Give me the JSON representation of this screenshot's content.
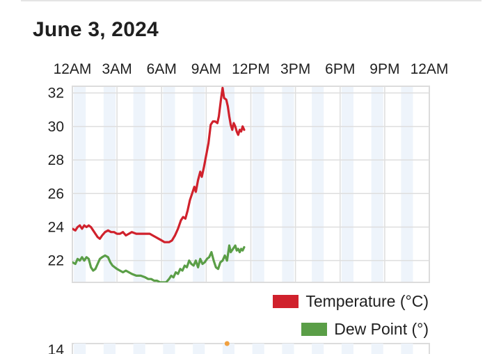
{
  "header": {
    "date": "June 3, 2024"
  },
  "chart_data": [
    {
      "type": "line",
      "title": "",
      "xlabel": "",
      "ylabel": "",
      "x_ticks": [
        "12AM",
        "3AM",
        "6AM",
        "9AM",
        "12PM",
        "3PM",
        "6PM",
        "9PM",
        "12AM"
      ],
      "x_range_hours": [
        0,
        24
      ],
      "y_ticks": [
        22,
        24,
        26,
        28,
        30,
        32
      ],
      "ylim": [
        20.7,
        32.4
      ],
      "grid": true,
      "legend_position": "bottom-right",
      "series": [
        {
          "name": "Temperature (°C)",
          "color": "#d0212c",
          "points": [
            [
              0,
              23.9
            ],
            [
              0.2,
              23.8
            ],
            [
              0.35,
              24.0
            ],
            [
              0.5,
              24.1
            ],
            [
              0.65,
              23.9
            ],
            [
              0.8,
              24.1
            ],
            [
              0.95,
              24.0
            ],
            [
              1.1,
              24.1
            ],
            [
              1.25,
              24.0
            ],
            [
              1.4,
              23.8
            ],
            [
              1.55,
              23.6
            ],
            [
              1.7,
              23.4
            ],
            [
              1.85,
              23.3
            ],
            [
              2.0,
              23.5
            ],
            [
              2.2,
              23.7
            ],
            [
              2.4,
              23.8
            ],
            [
              2.6,
              23.7
            ],
            [
              2.8,
              23.7
            ],
            [
              3.0,
              23.6
            ],
            [
              3.2,
              23.6
            ],
            [
              3.4,
              23.7
            ],
            [
              3.6,
              23.5
            ],
            [
              3.8,
              23.6
            ],
            [
              4.0,
              23.7
            ],
            [
              4.3,
              23.6
            ],
            [
              4.6,
              23.6
            ],
            [
              4.9,
              23.6
            ],
            [
              5.2,
              23.6
            ],
            [
              5.4,
              23.5
            ],
            [
              5.6,
              23.4
            ],
            [
              5.8,
              23.3
            ],
            [
              6.0,
              23.2
            ],
            [
              6.2,
              23.1
            ],
            [
              6.5,
              23.1
            ],
            [
              6.7,
              23.2
            ],
            [
              6.9,
              23.5
            ],
            [
              7.1,
              23.9
            ],
            [
              7.3,
              24.4
            ],
            [
              7.45,
              24.6
            ],
            [
              7.6,
              24.5
            ],
            [
              7.75,
              25.0
            ],
            [
              7.9,
              25.6
            ],
            [
              8.05,
              26.0
            ],
            [
              8.2,
              26.4
            ],
            [
              8.3,
              26.1
            ],
            [
              8.45,
              26.8
            ],
            [
              8.6,
              27.3
            ],
            [
              8.7,
              27.0
            ],
            [
              8.85,
              27.6
            ],
            [
              9.0,
              28.3
            ],
            [
              9.15,
              29.0
            ],
            [
              9.3,
              30.1
            ],
            [
              9.45,
              30.3
            ],
            [
              9.6,
              30.3
            ],
            [
              9.75,
              30.2
            ],
            [
              9.85,
              30.6
            ],
            [
              10.0,
              31.7
            ],
            [
              10.1,
              32.3
            ],
            [
              10.2,
              31.7
            ],
            [
              10.35,
              31.6
            ],
            [
              10.45,
              31.2
            ],
            [
              10.55,
              30.6
            ],
            [
              10.65,
              30.1
            ],
            [
              10.75,
              29.8
            ],
            [
              10.85,
              30.2
            ],
            [
              10.95,
              30.0
            ],
            [
              11.05,
              29.7
            ],
            [
              11.15,
              29.5
            ],
            [
              11.25,
              29.8
            ],
            [
              11.35,
              29.7
            ],
            [
              11.45,
              30.0
            ],
            [
              11.55,
              29.8
            ]
          ]
        },
        {
          "name": "Dew Point (°)",
          "color": "#5a9e47",
          "points": [
            [
              0,
              21.9
            ],
            [
              0.2,
              21.8
            ],
            [
              0.35,
              22.1
            ],
            [
              0.5,
              22.0
            ],
            [
              0.65,
              22.2
            ],
            [
              0.8,
              22.0
            ],
            [
              0.95,
              22.2
            ],
            [
              1.1,
              22.1
            ],
            [
              1.25,
              21.6
            ],
            [
              1.4,
              21.4
            ],
            [
              1.55,
              21.5
            ],
            [
              1.7,
              21.8
            ],
            [
              1.85,
              22.1
            ],
            [
              2.0,
              22.2
            ],
            [
              2.2,
              22.3
            ],
            [
              2.4,
              22.2
            ],
            [
              2.55,
              21.9
            ],
            [
              2.7,
              21.7
            ],
            [
              2.85,
              21.6
            ],
            [
              3.0,
              21.5
            ],
            [
              3.2,
              21.4
            ],
            [
              3.4,
              21.3
            ],
            [
              3.6,
              21.4
            ],
            [
              3.8,
              21.3
            ],
            [
              4.0,
              21.2
            ],
            [
              4.3,
              21.1
            ],
            [
              4.6,
              21.1
            ],
            [
              4.9,
              21.0
            ],
            [
              5.1,
              20.9
            ],
            [
              5.3,
              20.9
            ],
            [
              5.5,
              20.8
            ],
            [
              5.7,
              20.8
            ],
            [
              5.9,
              20.7
            ],
            [
              6.1,
              20.7
            ],
            [
              6.3,
              20.7
            ],
            [
              6.5,
              20.9
            ],
            [
              6.65,
              21.1
            ],
            [
              6.8,
              21.0
            ],
            [
              6.95,
              21.3
            ],
            [
              7.1,
              21.2
            ],
            [
              7.25,
              21.5
            ],
            [
              7.4,
              21.4
            ],
            [
              7.55,
              21.7
            ],
            [
              7.7,
              21.6
            ],
            [
              7.85,
              22.0
            ],
            [
              8.0,
              21.8
            ],
            [
              8.15,
              21.7
            ],
            [
              8.3,
              22.0
            ],
            [
              8.45,
              21.6
            ],
            [
              8.6,
              22.1
            ],
            [
              8.75,
              21.8
            ],
            [
              8.9,
              21.9
            ],
            [
              9.05,
              22.1
            ],
            [
              9.2,
              22.2
            ],
            [
              9.35,
              22.5
            ],
            [
              9.5,
              22.0
            ],
            [
              9.65,
              21.6
            ],
            [
              9.8,
              21.5
            ],
            [
              9.95,
              21.9
            ],
            [
              10.1,
              22.0
            ],
            [
              10.25,
              22.3
            ],
            [
              10.4,
              22.0
            ],
            [
              10.55,
              22.9
            ],
            [
              10.65,
              22.5
            ],
            [
              10.8,
              22.7
            ],
            [
              10.95,
              22.9
            ],
            [
              11.05,
              22.6
            ],
            [
              11.15,
              22.7
            ],
            [
              11.25,
              22.5
            ],
            [
              11.35,
              22.7
            ],
            [
              11.45,
              22.6
            ],
            [
              11.55,
              22.8
            ]
          ]
        }
      ]
    },
    {
      "type": "line",
      "title": "",
      "y_ticks": [
        14
      ],
      "series": [
        {
          "color": "#f0a040",
          "points": [
            [
              10.4,
              14.4
            ]
          ]
        }
      ]
    }
  ]
}
